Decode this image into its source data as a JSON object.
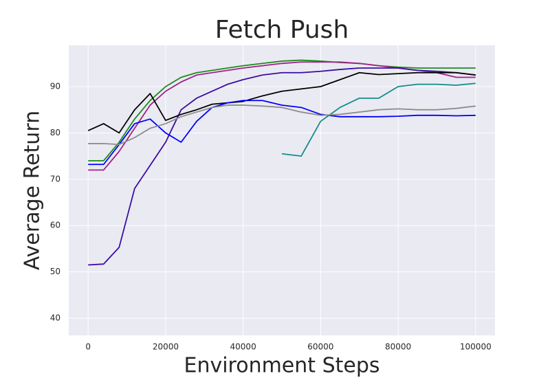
{
  "chart_data": {
    "type": "line",
    "title": "Fetch Push",
    "x_label": "Environment Steps",
    "y_label": "Average Return",
    "x": [
      0,
      4000,
      8000,
      12000,
      16000,
      20000,
      24000,
      28000,
      32000,
      36000,
      40000,
      45000,
      50000,
      55000,
      60000,
      65000,
      70000,
      75000,
      80000,
      85000,
      90000,
      95000,
      100000
    ],
    "series": [
      {
        "color": "#1a8c1a",
        "values": [
          74,
          74,
          78,
          83,
          87,
          90,
          92,
          93,
          93.5,
          94,
          94.5,
          95,
          95.5,
          95.7,
          95.5,
          95.2,
          95,
          94.5,
          94.2,
          94,
          94,
          94,
          94
        ]
      },
      {
        "color": "#a0208c",
        "values": [
          72,
          72,
          76,
          81,
          86,
          89,
          91,
          92.5,
          93,
          93.5,
          94,
          94.5,
          95,
          95.3,
          95.3,
          95.3,
          95,
          94.5,
          94,
          93.5,
          93,
          92,
          92
        ]
      },
      {
        "color": "#3a0ca3",
        "values": [
          51.5,
          51.7,
          55.3,
          68,
          73,
          78,
          85,
          87.5,
          89,
          90.5,
          91.5,
          92.5,
          93,
          93,
          93.3,
          93.7,
          94,
          94,
          94,
          93.5,
          93.3,
          93,
          92.5
        ]
      },
      {
        "color": "#000000",
        "values": [
          80.5,
          82,
          80,
          85,
          88.5,
          82.7,
          84,
          85,
          86.2,
          86.5,
          86.8,
          88,
          89,
          89.5,
          90,
          91.5,
          93,
          92.6,
          92.8,
          93,
          93,
          93,
          92.5
        ]
      },
      {
        "color": "#0000ff",
        "values": [
          73.2,
          73.2,
          77.5,
          82,
          83,
          80,
          78,
          82.5,
          85.5,
          86.5,
          87,
          87,
          86,
          85.5,
          84,
          83.5,
          83.5,
          83.5,
          83.6,
          83.8,
          83.8,
          83.7,
          83.8
        ]
      },
      {
        "color": "#128c8c",
        "values": [
          null,
          null,
          null,
          null,
          null,
          null,
          null,
          null,
          null,
          null,
          null,
          null,
          75.5,
          75,
          82.5,
          85.5,
          87.5,
          87.5,
          90,
          90.5,
          90.5,
          90.3,
          90.7
        ]
      },
      {
        "color": "#8c8c8c",
        "values": [
          77.7,
          77.7,
          77.5,
          79,
          81,
          82,
          83.5,
          84.5,
          85.5,
          86,
          86,
          85.8,
          85.5,
          84.5,
          83.8,
          84,
          84.5,
          85,
          85.2,
          85,
          85,
          85.3,
          85.8
        ]
      }
    ],
    "xlim": [
      -5000,
      105000
    ],
    "ylim": [
      36.3,
      98.9
    ],
    "xticks": [
      0,
      20000,
      40000,
      60000,
      80000,
      100000
    ],
    "yticks": [
      40,
      50,
      60,
      70,
      80,
      90
    ],
    "grid": true
  }
}
